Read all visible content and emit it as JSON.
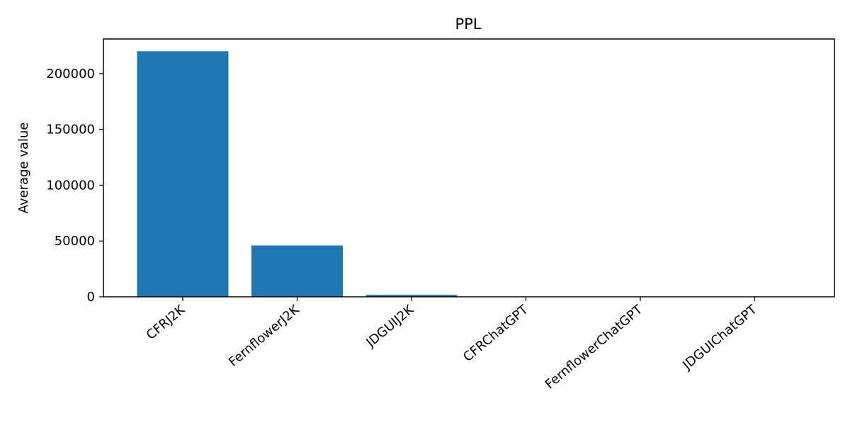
{
  "chart_data": {
    "type": "bar",
    "title": "PPL",
    "ylabel": "Average value",
    "xlabel": "",
    "categories": [
      "CFRJ2K",
      "FernflowerJ2K",
      "JDGUIJ2K",
      "CFRChatGPT",
      "FernflowerChatGPT",
      "JDGUIChatGPT"
    ],
    "values": [
      220000,
      46000,
      1800,
      150,
      150,
      150
    ],
    "ylim": [
      0,
      231000
    ],
    "yticks": [
      0,
      50000,
      100000,
      150000,
      200000
    ],
    "ytick_labels": [
      "0",
      "50000",
      "100000",
      "150000",
      "200000"
    ],
    "bar_color": "#1f77b4",
    "grid": false,
    "legend": "none"
  }
}
